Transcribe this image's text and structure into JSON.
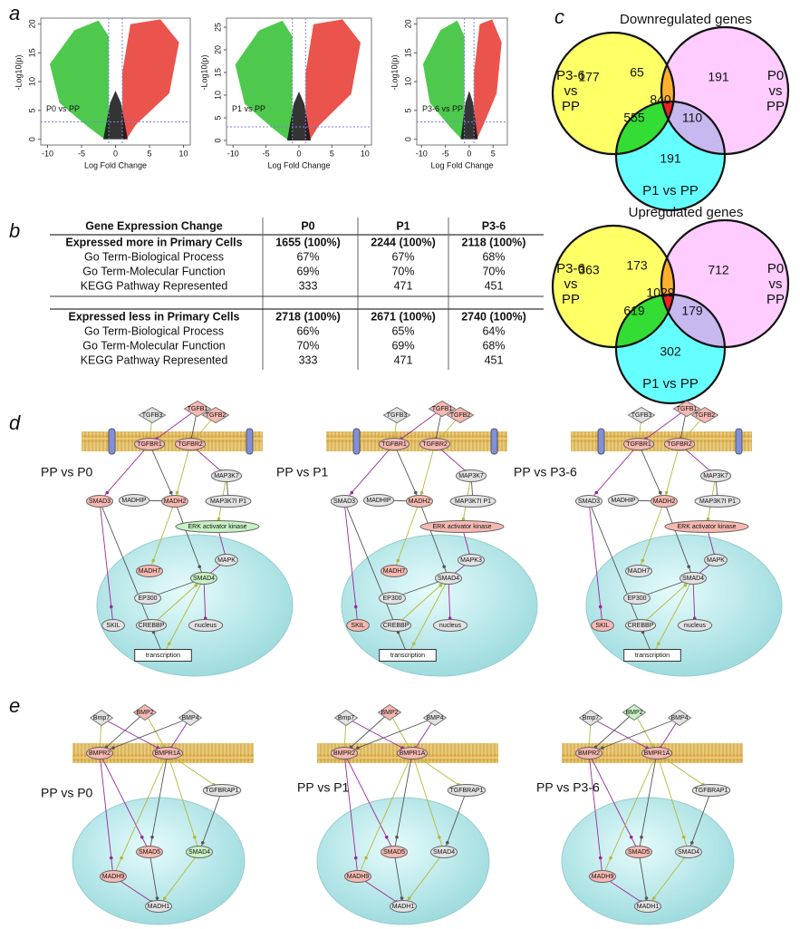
{
  "panel_letters": [
    "a",
    "b",
    "c",
    "d",
    "e"
  ],
  "volcano_plots": [
    {
      "label": "P0 vs  PP",
      "xlabel": "Log Fold Change",
      "ylabel": "-Log10(p)",
      "xlim": [
        -11,
        11
      ],
      "ylim": [
        -1,
        21
      ],
      "xticks": [
        -10,
        -5,
        0,
        5,
        10
      ],
      "yticks": [
        0,
        5,
        10,
        15,
        20
      ],
      "threshold_x": [
        -1,
        1
      ],
      "threshold_y": 3
    },
    {
      "label": "P1 vs  PP",
      "xlabel": "Log Fold Change",
      "ylabel": "-Log10(p)",
      "xlim": [
        -11,
        11
      ],
      "ylim": [
        -1,
        27
      ],
      "xticks": [
        -10,
        -5,
        0,
        5,
        10
      ],
      "yticks": [
        0,
        5,
        10,
        15,
        20,
        25
      ],
      "threshold_x": [
        -1,
        1
      ],
      "threshold_y": 3
    },
    {
      "label": "P3-6 vs  PP",
      "xlabel": "Log Fold Change",
      "ylabel": "-Log10(p)",
      "xlim": [
        -11,
        8
      ],
      "ylim": [
        -1,
        21
      ],
      "xticks": [
        -10,
        -5,
        0,
        5
      ],
      "yticks": [
        0,
        5,
        10,
        15,
        20
      ],
      "threshold_x": [
        -1,
        1
      ],
      "threshold_y": 3
    }
  ],
  "table": {
    "header": [
      "Gene Expression Change",
      "P0",
      "P1",
      "P3-6"
    ],
    "sections": [
      [
        [
          "Expressed more in Primary Cells",
          "1655 (100%)",
          "2244 (100%)",
          "2118 (100%)"
        ],
        [
          "Go Term-Biological Process",
          "67%",
          "67%",
          "68%"
        ],
        [
          "Go Term-Molecular Function",
          "69%",
          "70%",
          "70%"
        ],
        [
          "KEGG Pathway Represented",
          "333",
          "471",
          "451"
        ]
      ],
      [
        [
          "Expressed less in Primary Cells",
          "2718 (100%)",
          "2671 (100%)",
          "2740 (100%)"
        ],
        [
          "Go Term-Biological Process",
          "66%",
          "65%",
          "64%"
        ],
        [
          "Go Term-Molecular Function",
          "70%",
          "69%",
          "68%"
        ],
        [
          "KEGG Pathway Represented",
          "333",
          "471",
          "451"
        ]
      ]
    ]
  },
  "venns": [
    {
      "title": "Downregulated genes",
      "left_label": [
        "P3-6",
        "vs",
        "PP"
      ],
      "right_label": [
        "P0",
        "vs",
        "PP"
      ],
      "bottom_label": "P1 vs PP",
      "regions": {
        "left_only": 177,
        "left_right": 65,
        "right_only": 191,
        "all": 840,
        "left_bottom": 555,
        "right_bottom": 110,
        "bottom_only": 191
      }
    },
    {
      "title": "Upregulated genes",
      "left_label": [
        "P3-6",
        "vs",
        "PP"
      ],
      "right_label": [
        "P0",
        "vs",
        "PP"
      ],
      "bottom_label": "P1 vs PP",
      "regions": {
        "left_only": 363,
        "left_right": 173,
        "right_only": 712,
        "all": 1029,
        "left_bottom": 619,
        "right_bottom": 179,
        "bottom_only": 302
      }
    }
  ],
  "pathway_d": [
    {
      "title": "PP vs P0",
      "nodes": [
        {
          "label": "TGFB3",
          "color": "#e2e2e2"
        },
        {
          "label": "TGFB1",
          "color": "#f6b9b1"
        },
        {
          "label": "TGFB2",
          "color": "#f6b9b1"
        },
        {
          "label": "TGFBR1",
          "color": "#f6b9b1"
        },
        {
          "label": "TGFBR2",
          "color": "#f6b9b1"
        },
        {
          "label": "MAP3K7",
          "color": "#e2e2e2"
        },
        {
          "label": "MADHIP",
          "color": "#e2e2e2"
        },
        {
          "label": "SMAD3",
          "color": "#f6b9b1"
        },
        {
          "label": "MADH2",
          "color": "#f6b9b1"
        },
        {
          "label": "MAP3K7I P1",
          "color": "#e2e2e2"
        },
        {
          "label": "ERK activator kinase",
          "color": "#c8f2c4"
        },
        {
          "label": "MAPK",
          "color": "#e2e2e2"
        },
        {
          "label": "MADH7",
          "color": "#f6b9b1"
        },
        {
          "label": "SMAD4",
          "color": "#c8f2c4"
        },
        {
          "label": "EP300",
          "color": "#e2e2e2"
        },
        {
          "label": "CREBBP",
          "color": "#e2e2e2"
        },
        {
          "label": "SKIL",
          "color": "#e2e2e2"
        },
        {
          "label": "nucleus",
          "color": "#e2e2e2"
        },
        {
          "label": "transcription",
          "color": "#ffffff"
        }
      ]
    },
    {
      "title": "PP vs P1",
      "nodes": [
        {
          "label": "TGFB3",
          "color": "#e2e2e2"
        },
        {
          "label": "TGFB1",
          "color": "#f6b9b1"
        },
        {
          "label": "TGFB2",
          "color": "#f6b9b1"
        },
        {
          "label": "TGFBR1",
          "color": "#f6b9b1"
        },
        {
          "label": "TGFBR2",
          "color": "#f6b9b1"
        },
        {
          "label": "MAP3K7",
          "color": "#e2e2e2"
        },
        {
          "label": "MADHIP",
          "color": "#e2e2e2"
        },
        {
          "label": "SMAD3",
          "color": "#e2e2e2"
        },
        {
          "label": "MADH2",
          "color": "#f6b9b1"
        },
        {
          "label": "MAP3K7I P1",
          "color": "#e2e2e2"
        },
        {
          "label": "ERK activator kinase",
          "color": "#f6b9b1"
        },
        {
          "label": "MAPK3",
          "color": "#e2e2e2"
        },
        {
          "label": "MADH7",
          "color": "#f6b9b1"
        },
        {
          "label": "SMAD4",
          "color": "#e2e2e2"
        },
        {
          "label": "EP300",
          "color": "#e2e2e2"
        },
        {
          "label": "CREBBP",
          "color": "#e2e2e2"
        },
        {
          "label": "SKIL",
          "color": "#f6b9b1"
        },
        {
          "label": "nucleus",
          "color": "#e2e2e2"
        },
        {
          "label": "transcription",
          "color": "#ffffff"
        }
      ]
    },
    {
      "title": "PP vs P3-6",
      "nodes": [
        {
          "label": "TGFB3",
          "color": "#e2e2e2"
        },
        {
          "label": "TGFB1",
          "color": "#f6b9b1"
        },
        {
          "label": "TGFB2",
          "color": "#f6b9b1"
        },
        {
          "label": "TGFBR1",
          "color": "#f6b9b1"
        },
        {
          "label": "TGFBR2",
          "color": "#f6b9b1"
        },
        {
          "label": "MAP3K7",
          "color": "#e2e2e2"
        },
        {
          "label": "MADHIP",
          "color": "#e2e2e2"
        },
        {
          "label": "SMAD3",
          "color": "#e2e2e2"
        },
        {
          "label": "MADH2",
          "color": "#f6b9b1"
        },
        {
          "label": "MAP3K7I P1",
          "color": "#e2e2e2"
        },
        {
          "label": "ERK activator kinase",
          "color": "#f6b9b1"
        },
        {
          "label": "MAPK",
          "color": "#e2e2e2"
        },
        {
          "label": "MADH7",
          "color": "#e2e2e2"
        },
        {
          "label": "SMAD4",
          "color": "#e2e2e2"
        },
        {
          "label": "EP300",
          "color": "#e2e2e2"
        },
        {
          "label": "CREBBP",
          "color": "#e2e2e2"
        },
        {
          "label": "SKIL",
          "color": "#f6b9b1"
        },
        {
          "label": "nucleus",
          "color": "#e2e2e2"
        },
        {
          "label": "transcription",
          "color": "#ffffff"
        }
      ]
    }
  ],
  "pathway_e": [
    {
      "title": "PP vs P0",
      "nodes": [
        {
          "label": "Bmp7",
          "color": "#e2e2e2"
        },
        {
          "label": "BMP2",
          "color": "#f6b9b1"
        },
        {
          "label": "BMP4",
          "color": "#e2e2e2"
        },
        {
          "label": "BMPR2",
          "color": "#f6b9b1"
        },
        {
          "label": "BMPR1A",
          "color": "#f6b9b1"
        },
        {
          "label": "TGFBRAP1",
          "color": "#e2e2e2"
        },
        {
          "label": "SMAD5",
          "color": "#f6b9b1"
        },
        {
          "label": "MADH9",
          "color": "#f6b9b1"
        },
        {
          "label": "SMAD4",
          "color": "#c8f2c4"
        },
        {
          "label": "MADH1",
          "color": "#e2e2e2"
        }
      ]
    },
    {
      "title": "PP vs P1",
      "nodes": [
        {
          "label": "Bmp7",
          "color": "#e2e2e2"
        },
        {
          "label": "BMP2",
          "color": "#f6b9b1"
        },
        {
          "label": "BMP4",
          "color": "#e2e2e2"
        },
        {
          "label": "BMPR2",
          "color": "#f6b9b1"
        },
        {
          "label": "BMPR1A",
          "color": "#f6b9b1"
        },
        {
          "label": "TGFBRAP1",
          "color": "#e2e2e2"
        },
        {
          "label": "SMAD5",
          "color": "#f6b9b1"
        },
        {
          "label": "MADH9",
          "color": "#f6b9b1"
        },
        {
          "label": "SMAD4",
          "color": "#e2e2e2"
        },
        {
          "label": "MADH1",
          "color": "#e2e2e2"
        }
      ]
    },
    {
      "title": "PP vs P3-6",
      "nodes": [
        {
          "label": "Bmp7",
          "color": "#e2e2e2"
        },
        {
          "label": "BMP2",
          "color": "#c8f2c4"
        },
        {
          "label": "BMP4",
          "color": "#e2e2e2"
        },
        {
          "label": "BMPR2",
          "color": "#f6b9b1"
        },
        {
          "label": "BMPR1A",
          "color": "#f6b9b1"
        },
        {
          "label": "TGFBRAP1",
          "color": "#e2e2e2"
        },
        {
          "label": "SMAD5",
          "color": "#f6b9b1"
        },
        {
          "label": "MADH9",
          "color": "#f6b9b1"
        },
        {
          "label": "SMAD4",
          "color": "#e2e2e2"
        },
        {
          "label": "MADH1",
          "color": "#e2e2e2"
        }
      ]
    }
  ]
}
